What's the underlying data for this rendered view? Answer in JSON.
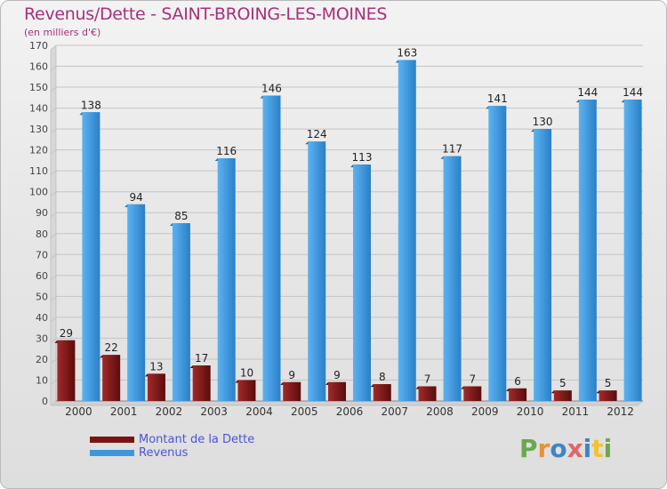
{
  "header": {
    "title": "Revenus/Dette - SAINT-BROING-LES-MOINES",
    "subtitle": "(en milliers d'€)"
  },
  "logo": {
    "text": "Proxiti",
    "letters": [
      {
        "ch": "P",
        "color": "#6aa84f"
      },
      {
        "ch": "r",
        "color": "#e69138"
      },
      {
        "ch": "o",
        "color": "#3d85c6"
      },
      {
        "ch": "x",
        "color": "#e06666"
      },
      {
        "ch": "i",
        "color": "#3d85c6"
      },
      {
        "ch": "t",
        "color": "#f1c232"
      },
      {
        "ch": "i",
        "color": "#6aa84f"
      }
    ]
  },
  "chart_data": {
    "type": "bar",
    "title": "Revenus/Dette - SAINT-BROING-LES-MOINES",
    "subtitle": "(en milliers d'€)",
    "categories": [
      "2000",
      "2001",
      "2002",
      "2003",
      "2004",
      "2005",
      "2006",
      "2007",
      "2008",
      "2009",
      "2010",
      "2011",
      "2012"
    ],
    "series": [
      {
        "name": "Montant de la Dette",
        "color": "#7a1414",
        "values": [
          29,
          22,
          13,
          17,
          10,
          9,
          9,
          8,
          7,
          7,
          6,
          5,
          5
        ]
      },
      {
        "name": "Revenus",
        "color": "#3c98de",
        "values": [
          138,
          94,
          85,
          116,
          146,
          124,
          113,
          163,
          117,
          141,
          130,
          144,
          144
        ]
      }
    ],
    "ylim": [
      0,
      170
    ],
    "yticks": [
      0,
      10,
      20,
      30,
      40,
      50,
      60,
      70,
      80,
      90,
      100,
      110,
      120,
      130,
      140,
      150,
      160,
      170
    ],
    "grid": true,
    "legend": "bottom-left"
  }
}
